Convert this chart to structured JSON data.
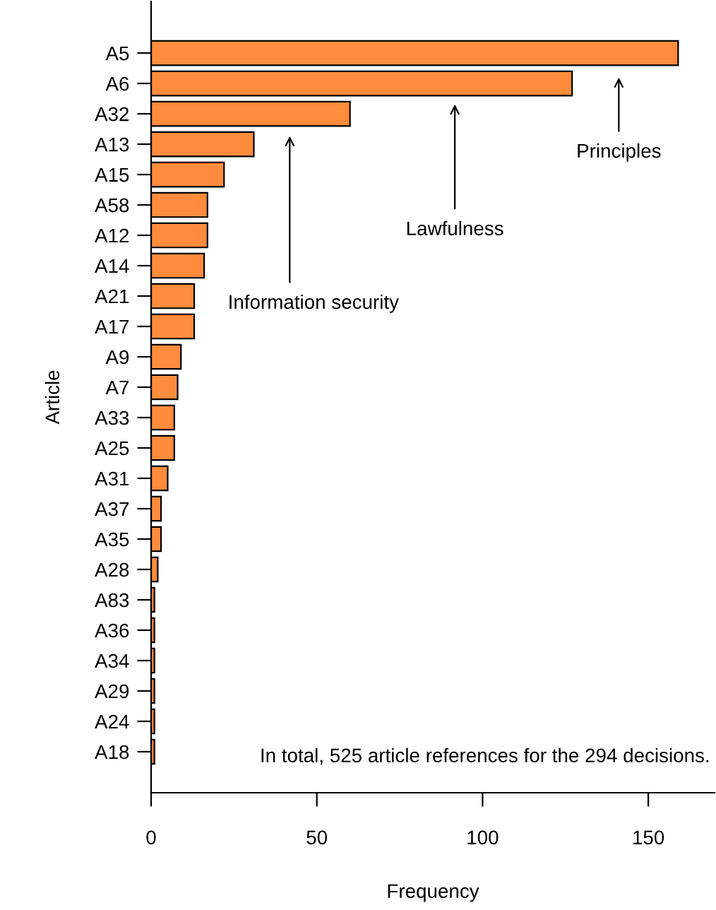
{
  "chart_data": {
    "type": "bar",
    "orientation": "horizontal",
    "xlabel": "Frequency",
    "ylabel": "Article",
    "categories": [
      "A5",
      "A6",
      "A32",
      "A13",
      "A15",
      "A58",
      "A12",
      "A14",
      "A21",
      "A17",
      "A9",
      "A7",
      "A33",
      "A25",
      "A31",
      "A37",
      "A35",
      "A28",
      "A83",
      "A36",
      "A34",
      "A29",
      "A24",
      "A18"
    ],
    "values": [
      159,
      127,
      60,
      31,
      22,
      17,
      17,
      16,
      13,
      13,
      9,
      8,
      7,
      7,
      5,
      3,
      3,
      2,
      1,
      1,
      1,
      1,
      1,
      1
    ],
    "color": "#ff8c3c",
    "xlim": [
      0,
      170
    ],
    "xticks": [
      0,
      50,
      100,
      150
    ],
    "grid": false,
    "annotations": [
      "Principles",
      "Lawfulness",
      "Information security",
      "In total, 525 article references for the 294 decisions."
    ]
  }
}
